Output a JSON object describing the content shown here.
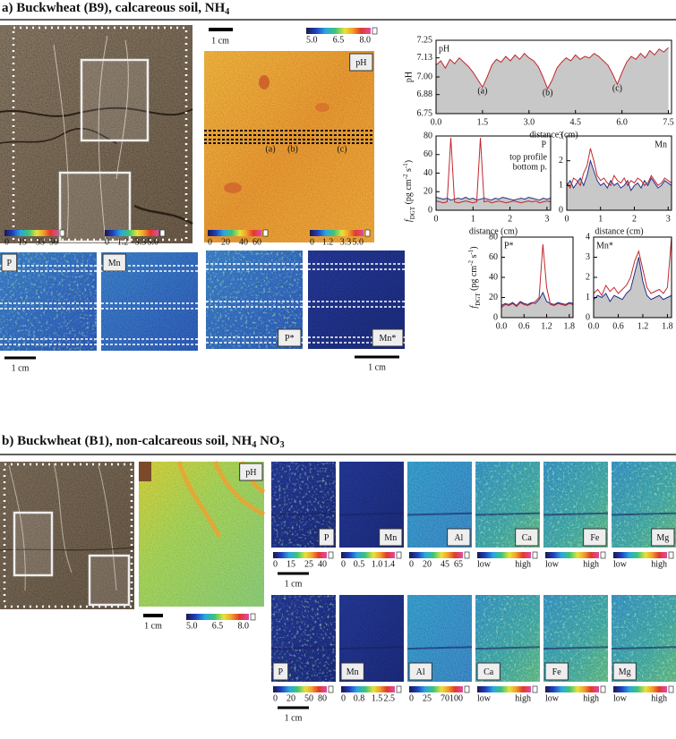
{
  "panel_a": {
    "title": "a) Buckwheat (B9), calcareous soil, NH",
    "title_sub": "4",
    "ph_map": {
      "label": "pH",
      "scale": "1 cm",
      "colorbar": [
        "5.0",
        "6.5",
        "8.0"
      ],
      "line_labels": [
        "(a)",
        "(b)",
        "(c)"
      ]
    },
    "maps": [
      {
        "label": "P",
        "colorbar": [
          "0",
          "15",
          "33",
          "50"
        ]
      },
      {
        "label": "Mn",
        "colorbar": [
          "0",
          "1.2",
          "3.3",
          "5.0"
        ]
      },
      {
        "label": "P*",
        "colorbar": [
          "0",
          "20",
          "40",
          "60"
        ]
      },
      {
        "label": "Mn*",
        "colorbar": [
          "0",
          "1.2",
          "3.3",
          "5.0"
        ]
      }
    ],
    "scales": [
      "1 cm",
      "1 cm"
    ]
  },
  "panel_b": {
    "title": [
      "b) Buckwheat (B1), non-calcareous soil, NH",
      "4",
      " NO",
      "3"
    ],
    "ph_map": {
      "label": "pH",
      "scale": "1 cm",
      "colorbar": [
        "5.0",
        "6.5",
        "8.0"
      ]
    },
    "rows": [
      {
        "scale": "1 cm",
        "maps": [
          {
            "label": "P",
            "colorbar": [
              "0",
              "15",
              "25",
              "40"
            ]
          },
          {
            "label": "Mn",
            "colorbar": [
              "0",
              "0.5",
              "1.0",
              "1.4"
            ]
          },
          {
            "label": "Al",
            "colorbar": [
              "0",
              "20",
              "45",
              "65"
            ]
          },
          {
            "label": "Ca",
            "colorbar": [
              "low",
              "high"
            ]
          },
          {
            "label": "Fe",
            "colorbar": [
              "low",
              "high"
            ]
          },
          {
            "label": "Mg",
            "colorbar": [
              "low",
              "high"
            ]
          }
        ]
      },
      {
        "scale": "1 cm",
        "maps": [
          {
            "label": "P",
            "colorbar": [
              "0",
              "20",
              "50",
              "80"
            ]
          },
          {
            "label": "Mn",
            "colorbar": [
              "0",
              "0.8",
              "1.5",
              "2.5"
            ]
          },
          {
            "label": "Al",
            "colorbar": [
              "0",
              "25",
              "70",
              "100"
            ]
          },
          {
            "label": "Ca",
            "colorbar": [
              "low",
              "high"
            ]
          },
          {
            "label": "Fe",
            "colorbar": [
              "low",
              "high"
            ]
          },
          {
            "label": "Mg",
            "colorbar": [
              "low",
              "high"
            ]
          }
        ]
      }
    ]
  },
  "chart_data": [
    {
      "type": "line",
      "label": "pH",
      "xlabel": "distance (cm)",
      "ylabel": "pH",
      "fill": "#c8c8c8",
      "x": [
        0,
        0.15,
        0.3,
        0.45,
        0.6,
        0.75,
        0.9,
        1.05,
        1.2,
        1.35,
        1.5,
        1.65,
        1.8,
        1.95,
        2.1,
        2.25,
        2.4,
        2.55,
        2.7,
        2.85,
        3,
        3.15,
        3.3,
        3.45,
        3.6,
        3.75,
        3.9,
        4.05,
        4.2,
        4.35,
        4.5,
        4.65,
        4.8,
        4.95,
        5.1,
        5.25,
        5.4,
        5.55,
        5.7,
        5.85,
        6,
        6.15,
        6.3,
        6.45,
        6.6,
        6.75,
        6.9,
        7.05,
        7.2,
        7.35,
        7.5
      ],
      "series": [
        {
          "color": "#c1272d",
          "values": [
            7.08,
            7.11,
            7.06,
            7.12,
            7.09,
            7.13,
            7.1,
            7.07,
            7.03,
            6.98,
            6.93,
            7.0,
            7.08,
            7.12,
            7.1,
            7.14,
            7.11,
            7.15,
            7.12,
            7.16,
            7.13,
            7.11,
            7.07,
            7.0,
            6.92,
            6.98,
            7.06,
            7.1,
            7.13,
            7.11,
            7.15,
            7.12,
            7.14,
            7.13,
            7.16,
            7.14,
            7.11,
            7.08,
            7.02,
            6.95,
            7.03,
            7.1,
            7.14,
            7.12,
            7.16,
            7.13,
            7.18,
            7.15,
            7.19,
            7.17,
            7.2
          ]
        }
      ],
      "xlim": [
        0,
        7.6
      ],
      "ylim": [
        6.75,
        7.25
      ],
      "xticks": [
        {
          "value": 0,
          "label": "0.0"
        },
        1.5,
        {
          "value": 3,
          "label": "3.0"
        },
        4.5,
        {
          "value": 6,
          "label": "6.0"
        },
        7.5
      ],
      "yticks": [
        6.75,
        6.88,
        {
          "value": 7,
          "label": "7.00"
        },
        7.13,
        7.25
      ],
      "annotations": [
        {
          "text": "(a)",
          "x": 1.5,
          "y": 6.9
        },
        {
          "text": "(b)",
          "x": 3.6,
          "y": 6.89
        },
        {
          "text": "(c)",
          "x": 5.85,
          "y": 6.92
        }
      ]
    },
    {
      "type": "line",
      "label": "P",
      "xlabel": "distance (cm)",
      "fill": "#c8c8c8",
      "ylabel": {
        "f": "f",
        "sub": "DGT",
        "unit": " (pg cm",
        "exp1": "-2",
        "mid": " s",
        "exp2": "-1",
        "end": ")"
      },
      "x": [
        0,
        0.1,
        0.2,
        0.3,
        0.4,
        0.5,
        0.6,
        0.7,
        0.8,
        0.9,
        1,
        1.1,
        1.2,
        1.3,
        1.4,
        1.5,
        1.6,
        1.7,
        1.8,
        1.9,
        2,
        2.1,
        2.2,
        2.3,
        2.4,
        2.5,
        2.6,
        2.7,
        2.8,
        2.9,
        3,
        3.1
      ],
      "series": [
        {
          "name": "top profile",
          "color": "#27308a",
          "values": [
            14,
            13,
            12,
            13,
            11,
            12,
            13,
            12,
            14,
            12,
            13,
            11,
            12,
            13,
            12,
            11,
            13,
            12,
            14,
            13,
            12,
            11,
            12,
            13,
            12,
            14,
            13,
            12,
            11,
            13,
            12,
            13
          ]
        },
        {
          "name": "bottom p.",
          "color": "#c1272d",
          "values": [
            10,
            9,
            8,
            9,
            78,
            9,
            8,
            9,
            10,
            9,
            8,
            9,
            78,
            9,
            10,
            8,
            9,
            10,
            9,
            8,
            9,
            10,
            9,
            8,
            9,
            10,
            9,
            10,
            8,
            9,
            10,
            9
          ]
        }
      ],
      "xlim": [
        0,
        3.1
      ],
      "ylim": [
        0,
        80
      ],
      "xticks": [
        0,
        1,
        2,
        3
      ],
      "yticks": [
        0,
        20,
        40,
        60,
        80
      ]
    },
    {
      "type": "line",
      "label": "Mn",
      "xlabel": "distance (cm)",
      "fill": "#c8c8c8",
      "x": [
        0,
        0.1,
        0.2,
        0.3,
        0.4,
        0.5,
        0.6,
        0.7,
        0.8,
        0.9,
        1,
        1.1,
        1.2,
        1.3,
        1.4,
        1.5,
        1.6,
        1.7,
        1.8,
        1.9,
        2,
        2.1,
        2.2,
        2.3,
        2.4,
        2.5,
        2.6,
        2.7,
        2.8,
        2.9,
        3,
        3.1
      ],
      "series": [
        {
          "color": "#27308a",
          "values": [
            1.0,
            1.2,
            0.9,
            1.1,
            1.3,
            1.0,
            1.4,
            2.0,
            1.6,
            1.2,
            1.0,
            1.1,
            0.9,
            1.2,
            1.0,
            1.1,
            0.9,
            1.0,
            1.2,
            0.8,
            1.0,
            1.1,
            0.9,
            1.2,
            1.0,
            1.3,
            1.1,
            0.9,
            1.0,
            1.2,
            1.1,
            1.0
          ]
        },
        {
          "color": "#c1272d",
          "values": [
            1.1,
            0.9,
            1.3,
            1.2,
            1.0,
            1.5,
            1.8,
            2.5,
            2.0,
            1.4,
            1.2,
            1.3,
            1.1,
            1.0,
            1.4,
            1.2,
            1.1,
            1.3,
            1.0,
            1.2,
            1.1,
            1.3,
            1.2,
            1.0,
            1.1,
            1.4,
            1.2,
            1.0,
            1.1,
            1.3,
            1.2,
            1.1
          ]
        }
      ],
      "xlim": [
        0,
        3.1
      ],
      "ylim": [
        0,
        3
      ],
      "xticks": [
        0,
        1,
        2,
        3
      ],
      "yticks": [
        0,
        1,
        2,
        3
      ]
    },
    {
      "type": "line",
      "label": "P*",
      "fill": "#c8c8c8",
      "ylabel": {
        "f": "f",
        "sub": "DGT",
        "unit": " (pg cm",
        "exp1": "-2",
        "mid": " s",
        "exp2": "-1",
        "end": ")"
      },
      "x": [
        0,
        0.1,
        0.2,
        0.3,
        0.4,
        0.5,
        0.6,
        0.7,
        0.8,
        0.9,
        1,
        1.1,
        1.2,
        1.3,
        1.4,
        1.5,
        1.6,
        1.7,
        1.8,
        1.9
      ],
      "series": [
        {
          "color": "#27308a",
          "values": [
            12,
            14,
            13,
            15,
            12,
            16,
            14,
            13,
            15,
            14,
            18,
            25,
            16,
            14,
            13,
            15,
            14,
            13,
            15,
            14
          ]
        },
        {
          "color": "#c1272d",
          "values": [
            10,
            13,
            12,
            14,
            11,
            15,
            13,
            12,
            14,
            16,
            20,
            73,
            30,
            13,
            12,
            14,
            13,
            12,
            14,
            13
          ]
        }
      ],
      "xlim": [
        0,
        1.9
      ],
      "ylim": [
        0,
        80
      ],
      "xticks": [
        {
          "value": 0,
          "label": "0.0"
        },
        0.6,
        1.2,
        1.8
      ],
      "yticks": [
        0,
        20,
        40,
        60,
        80
      ]
    },
    {
      "type": "line",
      "label": "Mn*",
      "fill": "#c8c8c8",
      "x": [
        0,
        0.1,
        0.2,
        0.3,
        0.4,
        0.5,
        0.6,
        0.7,
        0.8,
        0.9,
        1,
        1.1,
        1.2,
        1.3,
        1.4,
        1.5,
        1.6,
        1.7,
        1.8,
        1.9
      ],
      "series": [
        {
          "color": "#27308a",
          "values": [
            0.9,
            1.1,
            1.0,
            1.2,
            0.8,
            1.1,
            1.0,
            0.9,
            1.2,
            1.4,
            2.2,
            3.0,
            1.8,
            1.1,
            0.9,
            1.0,
            1.1,
            0.9,
            1.0,
            1.1
          ]
        },
        {
          "color": "#c1272d",
          "values": [
            1.2,
            1.4,
            1.1,
            1.6,
            1.3,
            1.5,
            1.2,
            1.4,
            1.6,
            2.0,
            2.8,
            3.3,
            2.4,
            1.5,
            1.2,
            1.3,
            1.4,
            1.2,
            1.5,
            4.0
          ]
        }
      ],
      "xlim": [
        0,
        1.9
      ],
      "ylim": [
        0,
        4
      ],
      "xticks": [
        {
          "value": 0,
          "label": "0.0"
        },
        0.6,
        1.2,
        1.8
      ],
      "yticks": [
        0,
        1,
        2,
        3,
        4
      ]
    }
  ]
}
